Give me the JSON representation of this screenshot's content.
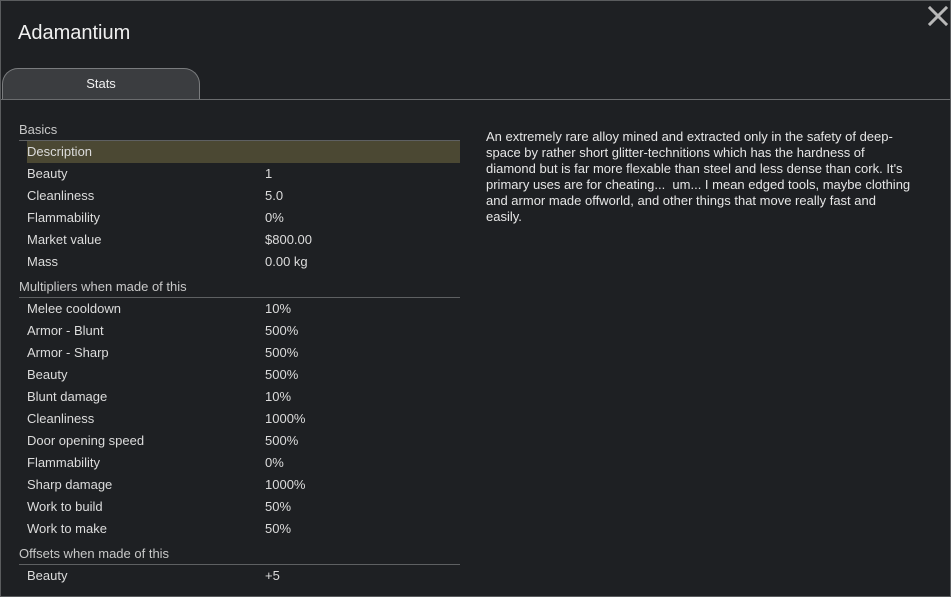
{
  "window": {
    "title": "Adamantium",
    "tabs": [
      "Stats"
    ],
    "sections": [
      {
        "title": "Basics",
        "rows": [
          {
            "label": "Description",
            "selected": true
          },
          {
            "label": "Beauty",
            "value": "1"
          },
          {
            "label": "Cleanliness",
            "value": "5.0"
          },
          {
            "label": "Flammability",
            "value": "0%"
          },
          {
            "label": "Market value",
            "value": "$800.00"
          },
          {
            "label": "Mass",
            "value": "0.00 kg"
          }
        ]
      },
      {
        "title": "Multipliers when made of this",
        "rows": [
          {
            "label": "Melee cooldown",
            "value": "10%"
          },
          {
            "label": "Armor - Blunt",
            "value": "500%"
          },
          {
            "label": "Armor - Sharp",
            "value": "500%"
          },
          {
            "label": "Beauty",
            "value": "500%"
          },
          {
            "label": "Blunt damage",
            "value": "10%"
          },
          {
            "label": "Cleanliness",
            "value": "1000%"
          },
          {
            "label": "Door opening speed",
            "value": "500%"
          },
          {
            "label": "Flammability",
            "value": "0%"
          },
          {
            "label": "Sharp damage",
            "value": "1000%"
          },
          {
            "label": "Work to build",
            "value": "50%"
          },
          {
            "label": "Work to make",
            "value": "50%"
          }
        ]
      },
      {
        "title": "Offsets when made of this",
        "rows": [
          {
            "label": "Beauty",
            "value": "+5"
          }
        ]
      }
    ],
    "description": "An extremely rare alloy mined and extracted only in the safety of deep-space by rather short glitter-technitions which has the hardness of diamond but is far more flexable than steel and less dense than cork. It's primary uses are for cheating...  um... I mean edged tools, maybe clothing and armor made offworld, and other things that move really fast and easily."
  }
}
